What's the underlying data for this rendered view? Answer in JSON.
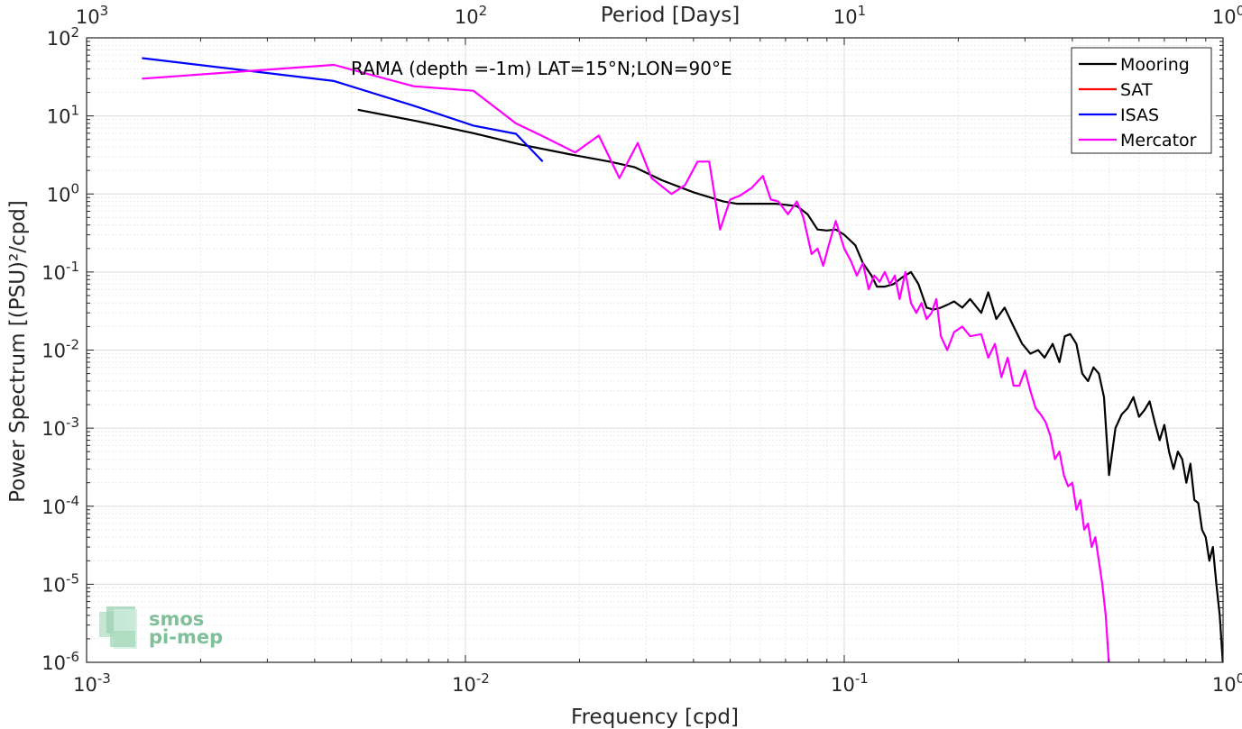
{
  "chart_data": {
    "type": "line",
    "xscale": "log",
    "yscale": "log",
    "xlim": [
      0.001,
      1
    ],
    "ylim": [
      1e-06,
      100
    ],
    "grid": true,
    "xlabel": "Frequency [cpd]",
    "ylabel": "Power Spectrum [(PSU)²/cpd]",
    "top_axis_label": "Period [Days]",
    "annotation": "RAMA (depth =-1m) LAT=15°N;LON=90°E",
    "legend_position": "top-right",
    "x_ticks": [
      {
        "base": "10",
        "exp": "-3"
      },
      {
        "base": "10",
        "exp": "-2"
      },
      {
        "base": "10",
        "exp": "-1"
      },
      {
        "base": "10",
        "exp": "0"
      }
    ],
    "y_ticks": [
      {
        "base": "10",
        "exp": "2"
      },
      {
        "base": "10",
        "exp": "1"
      },
      {
        "base": "10",
        "exp": "0"
      },
      {
        "base": "10",
        "exp": "-1"
      },
      {
        "base": "10",
        "exp": "-2"
      },
      {
        "base": "10",
        "exp": "-3"
      },
      {
        "base": "10",
        "exp": "-4"
      },
      {
        "base": "10",
        "exp": "-5"
      },
      {
        "base": "10",
        "exp": "-6"
      }
    ],
    "top_ticks": [
      {
        "base": "10",
        "exp": "3"
      },
      {
        "base": "10",
        "exp": "2"
      },
      {
        "base": "10",
        "exp": "1"
      },
      {
        "base": "10",
        "exp": "0"
      }
    ],
    "series": [
      {
        "name": "Mooring",
        "color": "#000000",
        "x": [
          0.0052,
          0.0075,
          0.0105,
          0.014,
          0.019,
          0.024,
          0.028,
          0.033,
          0.04,
          0.048,
          0.052,
          0.06,
          0.066,
          0.075,
          0.08,
          0.085,
          0.09,
          0.095,
          0.1,
          0.107,
          0.112,
          0.118,
          0.122,
          0.128,
          0.135,
          0.142,
          0.15,
          0.157,
          0.165,
          0.172,
          0.18,
          0.187,
          0.195,
          0.205,
          0.215,
          0.23,
          0.24,
          0.252,
          0.265,
          0.28,
          0.295,
          0.31,
          0.325,
          0.338,
          0.355,
          0.37,
          0.382,
          0.395,
          0.41,
          0.425,
          0.44,
          0.455,
          0.47,
          0.485,
          0.5,
          0.52,
          0.54,
          0.56,
          0.58,
          0.6,
          0.62,
          0.64,
          0.66,
          0.68,
          0.7,
          0.72,
          0.74,
          0.76,
          0.78,
          0.8,
          0.82,
          0.84,
          0.86,
          0.88,
          0.9,
          0.92,
          0.94,
          0.96,
          0.98,
          1.0
        ],
        "y": [
          12,
          8.5,
          6,
          4.3,
          3.2,
          2.6,
          2.2,
          1.5,
          1.05,
          0.8,
          0.75,
          0.75,
          0.75,
          0.7,
          0.55,
          0.35,
          0.34,
          0.35,
          0.3,
          0.22,
          0.13,
          0.09,
          0.065,
          0.065,
          0.07,
          0.085,
          0.1,
          0.07,
          0.035,
          0.033,
          0.035,
          0.038,
          0.042,
          0.035,
          0.045,
          0.03,
          0.055,
          0.025,
          0.035,
          0.02,
          0.012,
          0.009,
          0.01,
          0.008,
          0.012,
          0.007,
          0.015,
          0.016,
          0.012,
          0.005,
          0.004,
          0.006,
          0.005,
          0.0025,
          0.00025,
          0.001,
          0.0015,
          0.0018,
          0.0025,
          0.0014,
          0.0017,
          0.0022,
          0.0012,
          0.0007,
          0.0011,
          0.0005,
          0.0003,
          0.0005,
          0.0004,
          0.0002,
          0.00035,
          0.00012,
          0.00011,
          5e-05,
          4e-05,
          2e-05,
          3e-05,
          1e-05,
          4e-06,
          8e-07
        ]
      },
      {
        "name": "SAT",
        "color": "#ff0000",
        "x": [],
        "y": []
      },
      {
        "name": "ISAS",
        "color": "#0000ff",
        "x": [
          0.0014,
          0.0045,
          0.0073,
          0.0105,
          0.0136,
          0.016
        ],
        "y": [
          55,
          28,
          13.5,
          7.5,
          5.9,
          2.6
        ]
      },
      {
        "name": "Mercator",
        "color": "#ff00ff",
        "x": [
          0.0014,
          0.0045,
          0.0073,
          0.0105,
          0.0136,
          0.016,
          0.0195,
          0.0225,
          0.0255,
          0.0285,
          0.031,
          0.035,
          0.038,
          0.041,
          0.044,
          0.047,
          0.05,
          0.053,
          0.057,
          0.061,
          0.064,
          0.067,
          0.071,
          0.075,
          0.078,
          0.082,
          0.085,
          0.088,
          0.091,
          0.095,
          0.1,
          0.104,
          0.108,
          0.112,
          0.116,
          0.12,
          0.124,
          0.128,
          0.132,
          0.136,
          0.14,
          0.145,
          0.15,
          0.155,
          0.16,
          0.165,
          0.17,
          0.175,
          0.18,
          0.187,
          0.195,
          0.205,
          0.215,
          0.23,
          0.24,
          0.25,
          0.26,
          0.27,
          0.28,
          0.29,
          0.3,
          0.31,
          0.32,
          0.33,
          0.34,
          0.35,
          0.36,
          0.37,
          0.38,
          0.39,
          0.4,
          0.41,
          0.42,
          0.43,
          0.44,
          0.45,
          0.46,
          0.47,
          0.48,
          0.49,
          0.5
        ],
        "y": [
          30,
          45,
          24,
          21,
          8,
          5.5,
          3.4,
          5.6,
          1.6,
          4.5,
          1.6,
          1.0,
          1.3,
          2.6,
          2.6,
          0.35,
          0.85,
          0.95,
          1.2,
          1.7,
          0.85,
          0.8,
          0.55,
          0.8,
          0.5,
          0.17,
          0.2,
          0.12,
          0.22,
          0.45,
          0.2,
          0.14,
          0.09,
          0.13,
          0.06,
          0.09,
          0.075,
          0.1,
          0.07,
          0.09,
          0.045,
          0.1,
          0.04,
          0.03,
          0.04,
          0.025,
          0.03,
          0.045,
          0.015,
          0.01,
          0.017,
          0.02,
          0.015,
          0.016,
          0.008,
          0.012,
          0.0045,
          0.008,
          0.0035,
          0.0035,
          0.0055,
          0.003,
          0.0018,
          0.0015,
          0.0012,
          0.0008,
          0.0004,
          0.0005,
          0.00025,
          0.00018,
          0.0002,
          9e-05,
          0.00012,
          5e-05,
          6e-05,
          3e-05,
          4e-05,
          2e-05,
          1e-05,
          4e-06,
          9e-07
        ]
      }
    ]
  },
  "logo": {
    "line1": "smos",
    "line2": "pi-mep"
  }
}
